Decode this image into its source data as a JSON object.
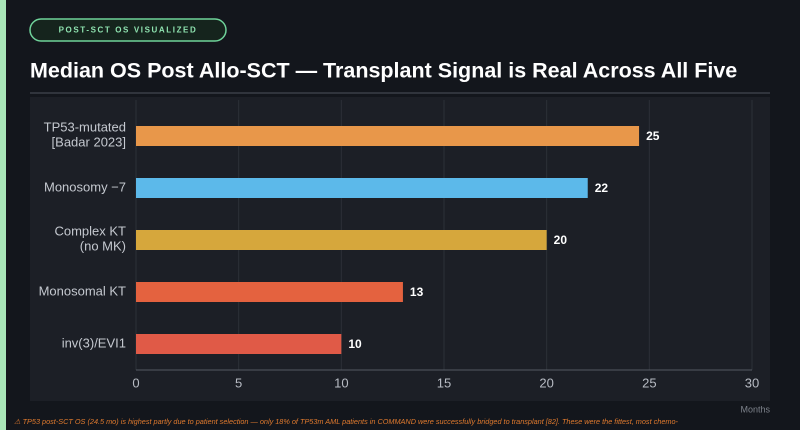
{
  "badge": "POST-SCT OS VISUALIZED",
  "title": "Median OS Post Allo-SCT — Transplant Signal is Real Across All Five",
  "chart_data": {
    "type": "bar",
    "orientation": "horizontal",
    "categories": [
      "TP53-mutated\n[Badar 2023]",
      "Monosomy −7",
      "Complex KT\n(no MK)",
      "Monosomal KT",
      "inv(3)/EVI1"
    ],
    "values": [
      24.5,
      22,
      20,
      13,
      10
    ],
    "value_labels": [
      "25",
      "22",
      "20",
      "13",
      "10"
    ],
    "colors": [
      "#e8974a",
      "#5cb9ea",
      "#d6a73c",
      "#e4623f",
      "#e05a47"
    ],
    "xlim": [
      0,
      30
    ],
    "xticks": [
      0,
      5,
      10,
      15,
      20,
      25,
      30
    ],
    "xlabel": "Months",
    "grid": true
  },
  "footnote": "⚠ TP53 post-SCT OS (24.5 mo) is highest partly due to patient selection — only 18% of TP53m AML patients in COMMAND were successfully bridged to transplant [82]. These were the fittest, most chemo-"
}
